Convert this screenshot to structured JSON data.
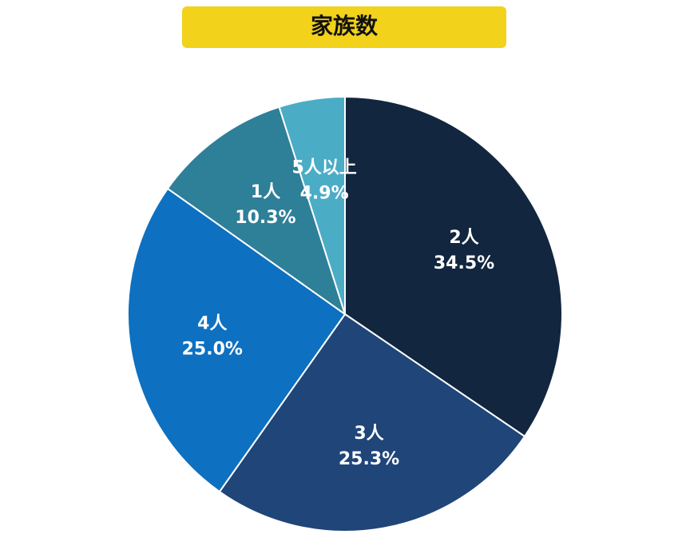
{
  "chart_data": {
    "type": "pie",
    "title": "家族数",
    "categories": [
      "2人",
      "3人",
      "4人",
      "1人",
      "5人以上"
    ],
    "values": [
      34.5,
      25.3,
      25.0,
      10.3,
      4.9
    ],
    "value_labels": [
      "34.5%",
      "25.3%",
      "25.0%",
      "10.3%",
      "4.9%"
    ],
    "colors": [
      "#12263f",
      "#1f4579",
      "#0d70c0",
      "#2e7f98",
      "#4bacc6"
    ]
  }
}
